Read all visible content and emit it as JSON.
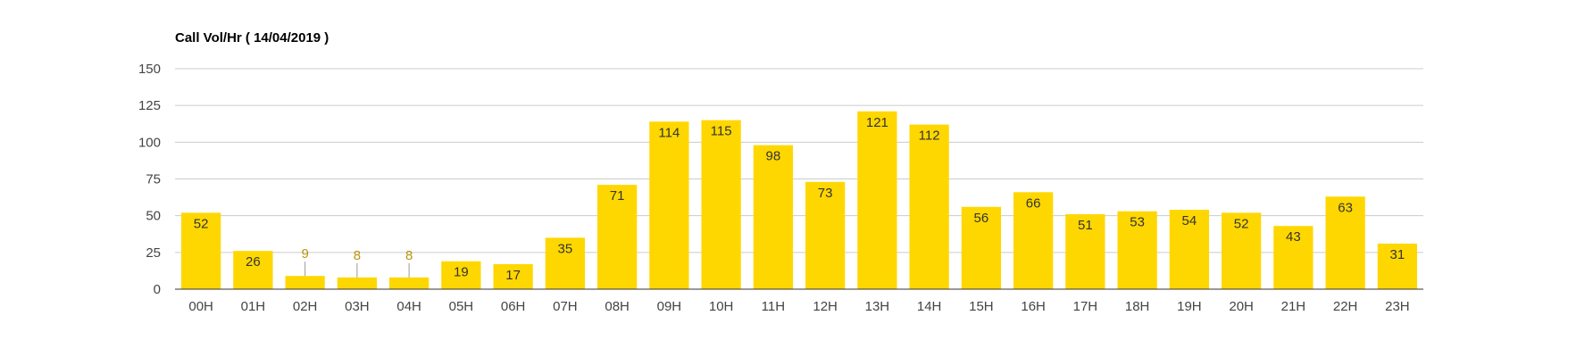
{
  "chart_data": {
    "type": "bar",
    "title": "Call Vol/Hr ( 14/04/2019 )",
    "xlabel": "",
    "ylabel": "",
    "ylim": [
      0,
      150
    ],
    "yticks": [
      0,
      25,
      50,
      75,
      100,
      125,
      150
    ],
    "grid": true,
    "legend": "none",
    "categories": [
      "00H",
      "01H",
      "02H",
      "03H",
      "04H",
      "05H",
      "06H",
      "07H",
      "08H",
      "09H",
      "10H",
      "11H",
      "12H",
      "13H",
      "14H",
      "15H",
      "16H",
      "17H",
      "18H",
      "19H",
      "20H",
      "21H",
      "22H",
      "23H"
    ],
    "values": [
      52,
      26,
      9,
      8,
      8,
      19,
      17,
      35,
      71,
      114,
      115,
      98,
      73,
      121,
      112,
      56,
      66,
      51,
      53,
      54,
      52,
      43,
      63,
      31
    ],
    "colors": {
      "bar": "#FFD700",
      "grid": "#CCCCCC",
      "axis": "#333333",
      "outside_label": "#B8960C"
    }
  }
}
